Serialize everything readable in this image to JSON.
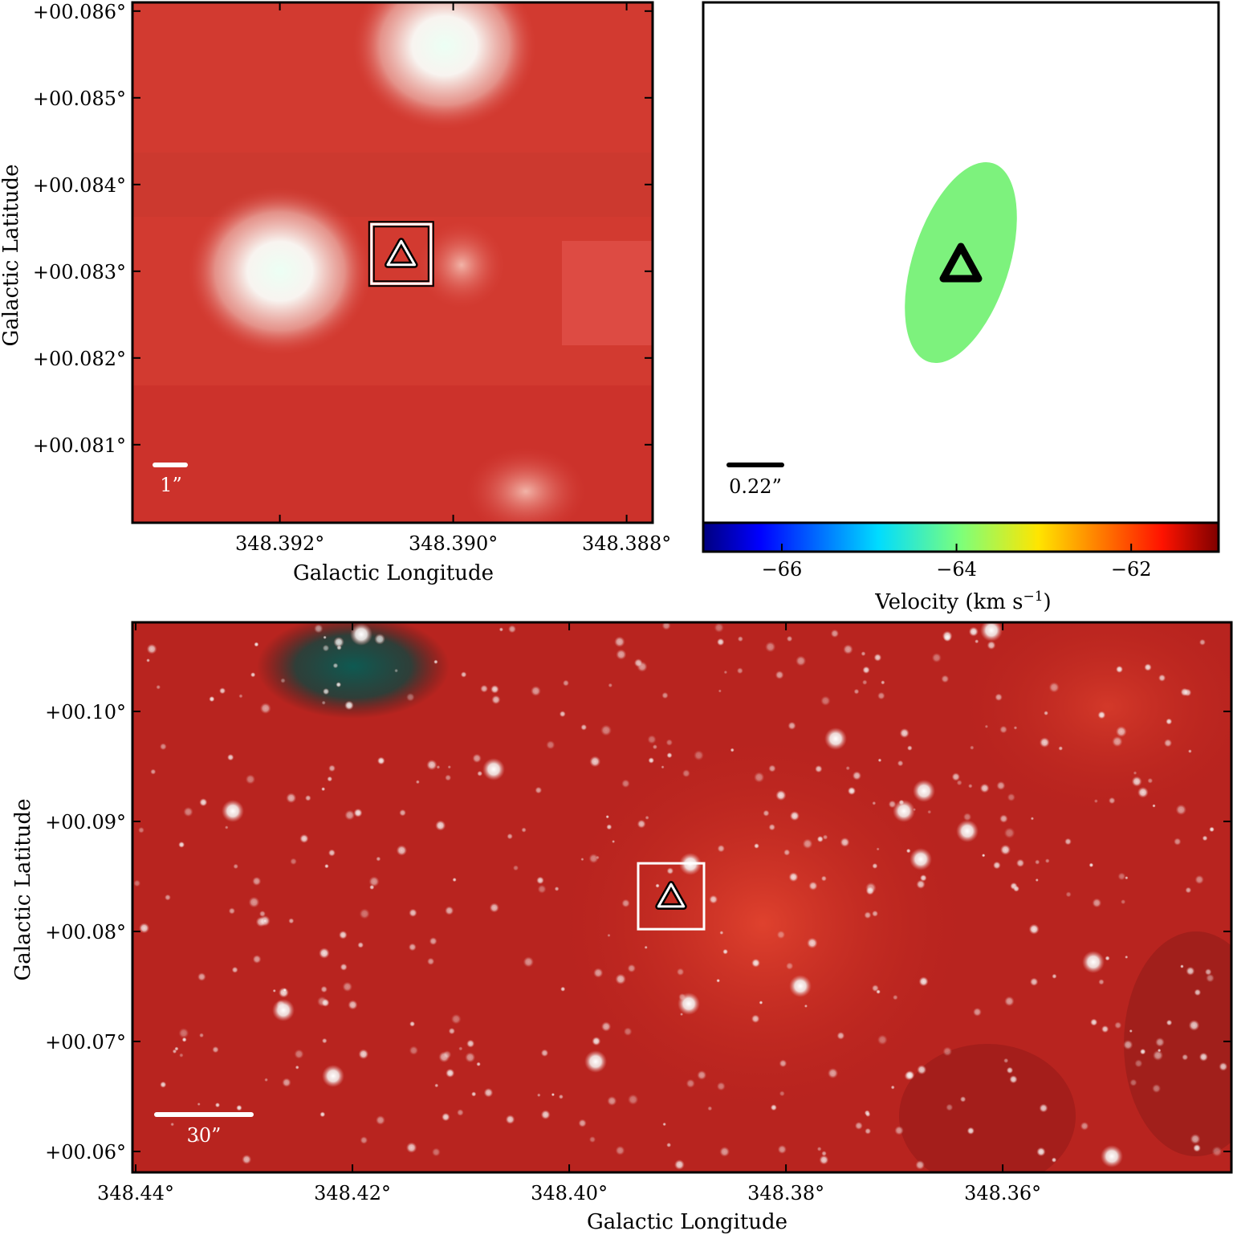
{
  "chart_data": [
    {
      "type": "image",
      "panel": "top-left",
      "xlabel": "Galactic Longitude",
      "ylabel": "Galactic Latitude",
      "x_ticks": [
        "348.392°",
        "348.390°",
        "348.388°"
      ],
      "y_ticks": [
        "+00.086°",
        "+00.085°",
        "+00.084°",
        "+00.083°",
        "+00.082°",
        "+00.081°"
      ],
      "x_tick_values": [
        348.392,
        348.39,
        348.388
      ],
      "y_tick_values": [
        0.086,
        0.085,
        0.084,
        0.083,
        0.082,
        0.081
      ],
      "xlim": [
        348.3937,
        348.3877
      ],
      "ylim": [
        0.0801,
        0.0861
      ],
      "scale_bar": "1”",
      "marker": {
        "shape": "triangle",
        "l": 348.3906,
        "b": 0.0832,
        "box": true
      },
      "bright_sources": [
        {
          "l": 348.392,
          "b": 0.083,
          "note": "white"
        },
        {
          "l": 348.3901,
          "b": 0.0856,
          "note": "white"
        }
      ]
    },
    {
      "type": "scatter",
      "panel": "top-right",
      "scale_bar": "0.22”",
      "ellipse": {
        "velocity": -63.9,
        "color": "#7df27d",
        "orientation_deg": 18
      },
      "marker": {
        "shape": "triangle"
      },
      "colorbar": {
        "label": "Velocity (km s",
        "label_superscript": "−1",
        "label_close": ")",
        "ticks": [
          "−66",
          "−64",
          "−62"
        ],
        "tick_values": [
          -66,
          -64,
          -62
        ],
        "range": [
          -66.9,
          -61.0
        ],
        "colormap": "jet"
      }
    },
    {
      "type": "image",
      "panel": "bottom",
      "xlabel": "Galactic Longitude",
      "ylabel": "Galactic Latitude",
      "x_ticks": [
        "348.44°",
        "348.42°",
        "348.40°",
        "348.38°",
        "348.36°"
      ],
      "y_ticks": [
        "+00.10°",
        "+00.09°",
        "+00.08°",
        "+00.07°",
        "+00.06°"
      ],
      "x_tick_values": [
        348.44,
        348.42,
        348.4,
        348.38,
        348.36
      ],
      "y_tick_values": [
        0.1,
        0.09,
        0.08,
        0.07,
        0.06
      ],
      "xlim": [
        348.4403,
        348.3389
      ],
      "ylim": [
        0.0581,
        0.1081
      ],
      "scale_bar": "30”",
      "marker": {
        "shape": "triangle",
        "l": 348.3906,
        "b": 0.0832,
        "box": true
      }
    }
  ]
}
